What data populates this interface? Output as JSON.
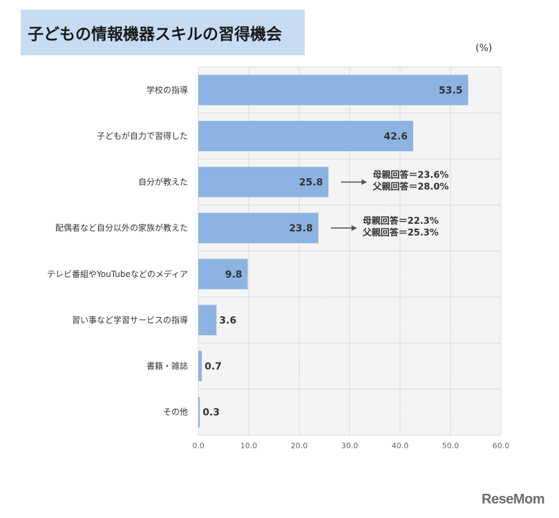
{
  "title": "子どもの情報機器スキルの習得機会",
  "unit": "(%)",
  "logo": "ReseMom",
  "colors": {
    "bar": "#8db3e2",
    "title_bg": "#c6dcf2",
    "grid": "#d9d9d9",
    "plot_bg": "#f2f2f2",
    "arrow": "#555555"
  },
  "chart_data": {
    "type": "bar",
    "orientation": "horizontal",
    "title": "子どもの情報機器スキルの習得機会",
    "xlabel": "",
    "ylabel": "",
    "unit": "(%)",
    "xlim": [
      0,
      60
    ],
    "x_ticks": [
      "0.0",
      "10.0",
      "20.0",
      "30.0",
      "40.0",
      "50.0",
      "60.0"
    ],
    "grid": true,
    "categories": [
      "学校の指導",
      "子どもが自力で習得した",
      "自分が教えた",
      "配偶者など自分以外の家族が教えた",
      "テレビ番組やYouTubeなどのメディア",
      "習い事など学習サービスの指導",
      "書籍・雑誌",
      "その他"
    ],
    "values": [
      53.5,
      42.6,
      25.8,
      23.8,
      9.8,
      3.6,
      0.7,
      0.3
    ],
    "value_labels": [
      "53.5",
      "42.6",
      "25.8",
      "23.8",
      "9.8",
      "3.6",
      "0.7",
      "0.3"
    ],
    "annotations": [
      {
        "category_index": 2,
        "lines": [
          "母親回答＝23.6%",
          "父親回答＝28.0%"
        ]
      },
      {
        "category_index": 3,
        "lines": [
          "母親回答＝22.3%",
          "父親回答＝25.3%"
        ]
      }
    ]
  }
}
